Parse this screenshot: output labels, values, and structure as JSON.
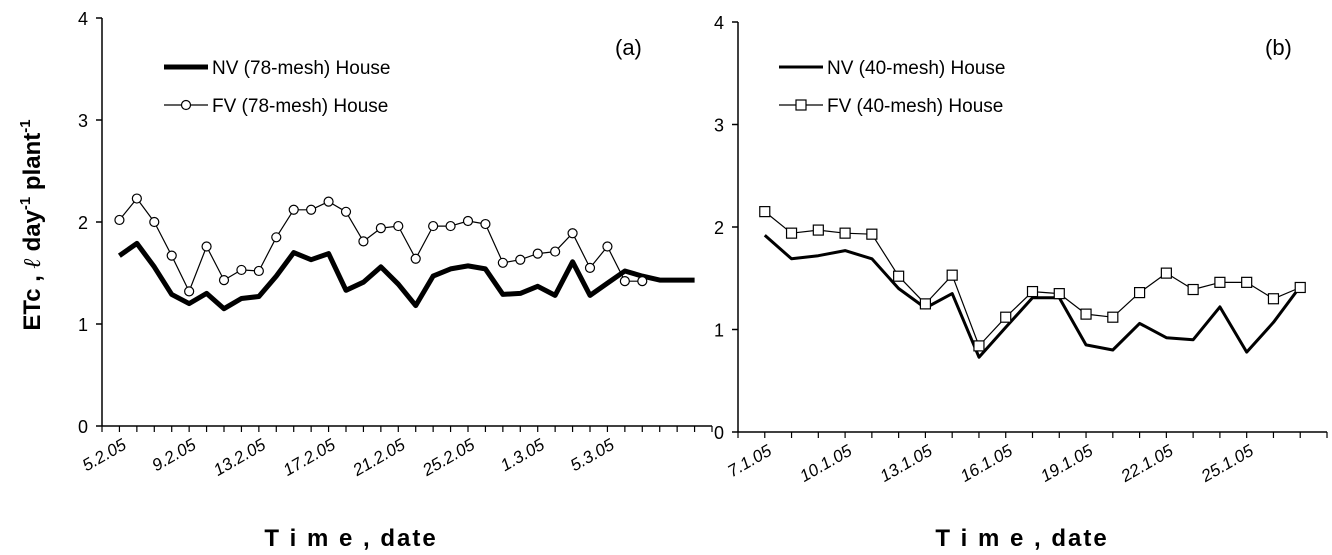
{
  "ylabel": {
    "prefix": "ETc , ",
    "ell": "ℓ",
    "day": " day",
    "sup1": "-1",
    "plant": " plant",
    "sup2": "-1"
  },
  "chart_data": [
    {
      "type": "line",
      "panel_label": "(a)",
      "xlabel": "T i m e , date",
      "ylim": [
        0,
        4
      ],
      "yticks": [
        0,
        1,
        2,
        3,
        4
      ],
      "xlim": [
        "2005-02-04",
        "2005-03-11"
      ],
      "xtick_labels": [
        "5.2.05",
        "9.2.05",
        "13.2.05",
        "17.2.05",
        "21.2.05",
        "25.2.05",
        "1.3.05",
        "5.3.05"
      ],
      "xtick_dates": [
        "2005-02-05",
        "2005-02-09",
        "2005-02-13",
        "2005-02-17",
        "2005-02-21",
        "2005-02-25",
        "2005-03-01",
        "2005-03-05"
      ],
      "legend_position": "top-left",
      "series": [
        {
          "name": "NV (78-mesh) House",
          "style": "thick",
          "color": "#000000",
          "x": [
            "2005-02-05",
            "2005-02-06",
            "2005-02-07",
            "2005-02-08",
            "2005-02-09",
            "2005-02-10",
            "2005-02-11",
            "2005-02-12",
            "2005-02-13",
            "2005-02-14",
            "2005-02-15",
            "2005-02-16",
            "2005-02-17",
            "2005-02-18",
            "2005-02-19",
            "2005-02-20",
            "2005-02-21",
            "2005-02-22",
            "2005-02-23",
            "2005-02-24",
            "2005-02-25",
            "2005-02-26",
            "2005-02-27",
            "2005-02-28",
            "2005-03-01",
            "2005-03-02",
            "2005-03-03",
            "2005-03-04",
            "2005-03-05",
            "2005-03-06",
            "2005-03-07",
            "2005-03-08",
            "2005-03-09",
            "2005-03-10"
          ],
          "values": [
            1.67,
            1.79,
            1.56,
            1.29,
            1.2,
            1.3,
            1.15,
            1.25,
            1.27,
            1.47,
            1.7,
            1.63,
            1.69,
            1.33,
            1.41,
            1.56,
            1.39,
            1.18,
            1.47,
            1.54,
            1.57,
            1.54,
            1.29,
            1.3,
            1.37,
            1.28,
            1.61,
            1.28,
            1.4,
            1.52,
            1.47,
            1.43,
            1.43,
            1.43
          ]
        },
        {
          "name": "FV (78-mesh) House",
          "style": "circle",
          "color": "#000000",
          "x": [
            "2005-02-05",
            "2005-02-06",
            "2005-02-07",
            "2005-02-08",
            "2005-02-09",
            "2005-02-10",
            "2005-02-11",
            "2005-02-12",
            "2005-02-13",
            "2005-02-14",
            "2005-02-15",
            "2005-02-16",
            "2005-02-17",
            "2005-02-18",
            "2005-02-19",
            "2005-02-20",
            "2005-02-21",
            "2005-02-22",
            "2005-02-23",
            "2005-02-24",
            "2005-02-25",
            "2005-02-26",
            "2005-02-27",
            "2005-02-28",
            "2005-03-01",
            "2005-03-02",
            "2005-03-03",
            "2005-03-04",
            "2005-03-05",
            "2005-03-06",
            "2005-03-07"
          ],
          "values": [
            2.02,
            2.23,
            2.0,
            1.67,
            1.32,
            1.76,
            1.43,
            1.53,
            1.52,
            1.85,
            2.12,
            2.12,
            2.2,
            2.1,
            1.81,
            1.94,
            1.96,
            1.64,
            1.96,
            1.96,
            2.01,
            1.98,
            1.6,
            1.63,
            1.69,
            1.71,
            1.89,
            1.55,
            1.76,
            1.42,
            1.42
          ]
        }
      ]
    },
    {
      "type": "line",
      "panel_label": "(b)",
      "xlabel": "T i m e , date",
      "ylim": [
        0,
        4
      ],
      "yticks": [
        0,
        1,
        2,
        3,
        4
      ],
      "xlim": [
        "2005-01-06",
        "2005-01-28"
      ],
      "xtick_labels": [
        "7.1.05",
        "10.1.05",
        "13.1.05",
        "16.1.05",
        "19.1.05",
        "22.1.05",
        "25.1.05"
      ],
      "xtick_dates": [
        "2005-01-07",
        "2005-01-10",
        "2005-01-13",
        "2005-01-16",
        "2005-01-19",
        "2005-01-22",
        "2005-01-25"
      ],
      "legend_position": "top-left",
      "series": [
        {
          "name": "NV (40-mesh) House",
          "style": "line",
          "color": "#000000",
          "x": [
            "2005-01-07",
            "2005-01-08",
            "2005-01-09",
            "2005-01-10",
            "2005-01-11",
            "2005-01-12",
            "2005-01-13",
            "2005-01-14",
            "2005-01-15",
            "2005-01-16",
            "2005-01-17",
            "2005-01-18",
            "2005-01-19",
            "2005-01-20",
            "2005-01-21",
            "2005-01-22",
            "2005-01-23",
            "2005-01-24",
            "2005-01-25",
            "2005-01-26",
            "2005-01-27"
          ],
          "values": [
            1.92,
            1.69,
            1.72,
            1.77,
            1.69,
            1.4,
            1.21,
            1.35,
            0.73,
            1.02,
            1.31,
            1.31,
            0.85,
            0.8,
            1.06,
            0.92,
            0.9,
            1.22,
            0.78,
            1.07,
            1.42
          ]
        },
        {
          "name": "FV (40-mesh) House",
          "style": "square",
          "color": "#000000",
          "x": [
            "2005-01-07",
            "2005-01-08",
            "2005-01-09",
            "2005-01-10",
            "2005-01-11",
            "2005-01-12",
            "2005-01-13",
            "2005-01-14",
            "2005-01-15",
            "2005-01-16",
            "2005-01-17",
            "2005-01-18",
            "2005-01-19",
            "2005-01-20",
            "2005-01-21",
            "2005-01-22",
            "2005-01-23",
            "2005-01-24",
            "2005-01-25",
            "2005-01-26",
            "2005-01-27"
          ],
          "values": [
            2.15,
            1.94,
            1.97,
            1.94,
            1.93,
            1.52,
            1.25,
            1.53,
            0.84,
            1.12,
            1.37,
            1.35,
            1.15,
            1.12,
            1.36,
            1.55,
            1.39,
            1.46,
            1.46,
            1.3,
            1.41
          ]
        }
      ]
    }
  ]
}
